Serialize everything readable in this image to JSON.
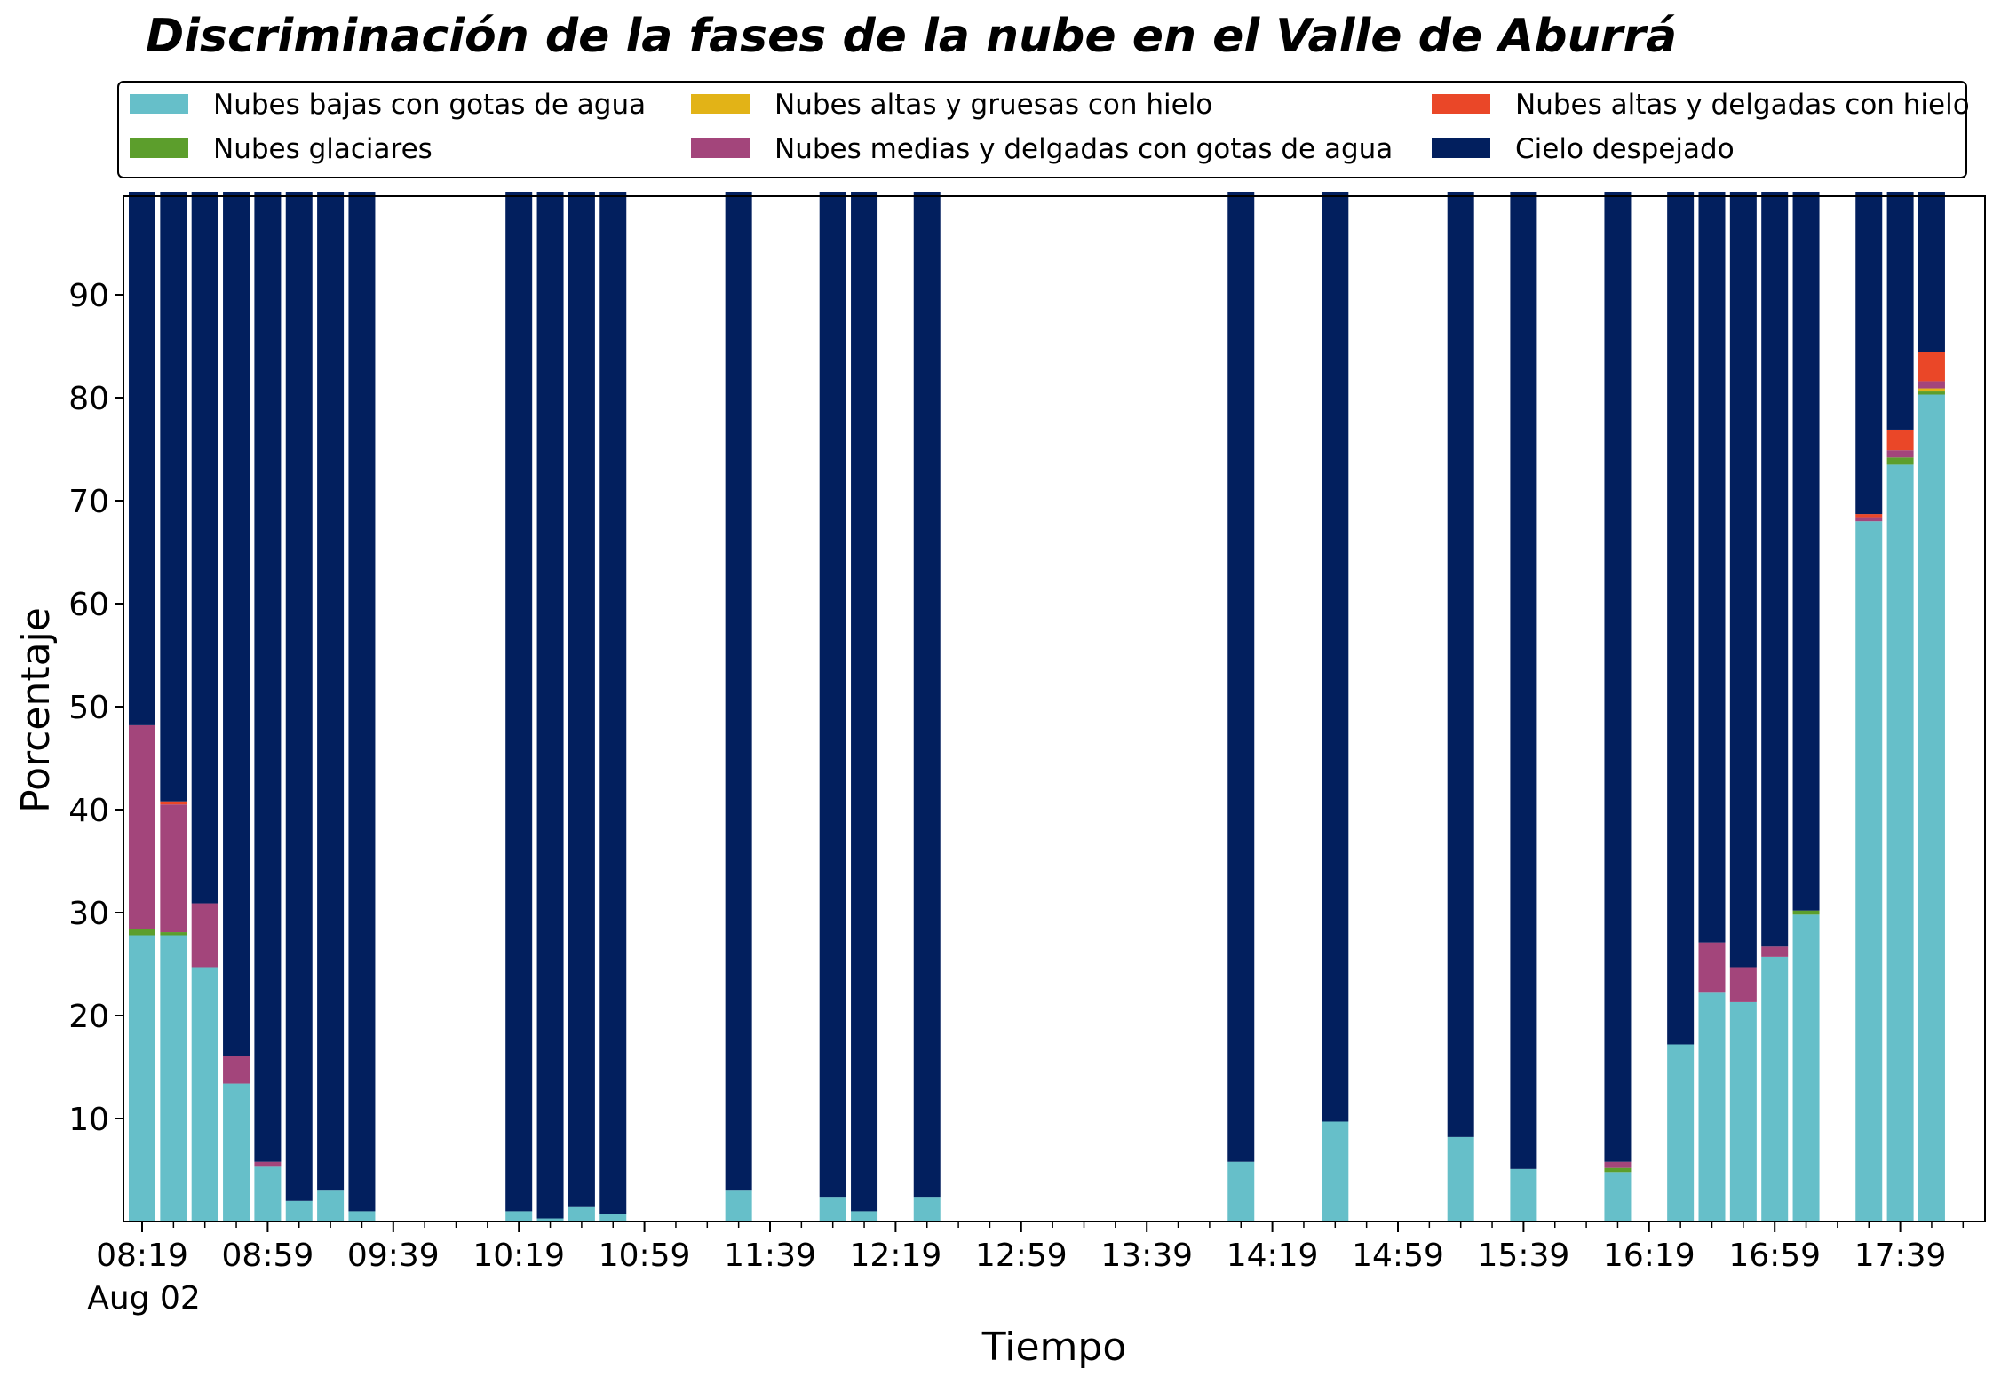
{
  "chart_data": {
    "type": "bar",
    "stacked": true,
    "title": "Discriminación de la fases de la nube en el Valle de Aburrá",
    "xlabel": "Tiempo",
    "ylabel": "Porcentaje",
    "ylim": [
      0,
      100
    ],
    "yticks": [
      10,
      20,
      30,
      40,
      50,
      60,
      70,
      80,
      90
    ],
    "xticks": [
      "08:19",
      "08:59",
      "09:39",
      "10:19",
      "10:59",
      "11:39",
      "12:19",
      "12:59",
      "13:39",
      "14:19",
      "14:59",
      "15:39",
      "16:19",
      "16:59",
      "17:39"
    ],
    "x_date_label": "Aug 02",
    "grid": false,
    "legend_position": "top",
    "slot_count": 59,
    "series": [
      {
        "name": "Nubes bajas con gotas de agua",
        "color": "#66bfc9"
      },
      {
        "name": "Nubes glaciares",
        "color": "#5c9e2c"
      },
      {
        "name": "Nubes altas y gruesas con hielo",
        "color": "#e2b317"
      },
      {
        "name": "Nubes medias y delgadas con gotas de agua",
        "color": "#a3457b"
      },
      {
        "name": "Nubes altas y delgadas con hielo",
        "color": "#ea4728"
      },
      {
        "name": "Cielo despejado",
        "color": "#021f5e"
      }
    ],
    "bars": [
      {
        "time": "08:19",
        "values": [
          27.8,
          0.6,
          0,
          19.8,
          0,
          51.8
        ]
      },
      {
        "time": "08:29",
        "values": [
          27.8,
          0.3,
          0,
          12.4,
          0.3,
          59.2
        ]
      },
      {
        "time": "08:39",
        "values": [
          24.7,
          0,
          0,
          6.2,
          0,
          69.1
        ]
      },
      {
        "time": "08:49",
        "values": [
          13.4,
          0,
          0,
          2.7,
          0,
          83.9
        ]
      },
      {
        "time": "08:59",
        "values": [
          5.4,
          0,
          0,
          0.4,
          0,
          94.2
        ]
      },
      {
        "time": "09:09",
        "values": [
          2.0,
          0,
          0,
          0,
          0,
          98.0
        ]
      },
      {
        "time": "09:19",
        "values": [
          3.0,
          0,
          0,
          0,
          0,
          97.0
        ]
      },
      {
        "time": "09:29",
        "values": [
          1.0,
          0,
          0,
          0,
          0,
          99.0
        ]
      },
      {
        "time": "10:19",
        "values": [
          1.0,
          0,
          0,
          0,
          0,
          99.0
        ]
      },
      {
        "time": "10:29",
        "values": [
          0.3,
          0,
          0,
          0,
          0,
          99.7
        ]
      },
      {
        "time": "10:39",
        "values": [
          1.4,
          0,
          0,
          0,
          0,
          98.6
        ]
      },
      {
        "time": "10:49",
        "values": [
          0.7,
          0,
          0,
          0,
          0,
          99.3
        ]
      },
      {
        "time": "11:29",
        "values": [
          3.0,
          0,
          0,
          0,
          0,
          97.0
        ]
      },
      {
        "time": "11:59",
        "values": [
          2.4,
          0,
          0,
          0,
          0,
          97.6
        ]
      },
      {
        "time": "12:09",
        "values": [
          1.0,
          0,
          0,
          0,
          0,
          99.0
        ]
      },
      {
        "time": "12:29",
        "values": [
          2.4,
          0,
          0,
          0,
          0,
          97.6
        ]
      },
      {
        "time": "14:09",
        "values": [
          5.8,
          0,
          0,
          0,
          0,
          94.2
        ]
      },
      {
        "time": "14:39",
        "values": [
          9.7,
          0,
          0,
          0,
          0,
          90.3
        ]
      },
      {
        "time": "15:19",
        "values": [
          8.2,
          0,
          0,
          0,
          0,
          91.8
        ]
      },
      {
        "time": "15:39",
        "values": [
          5.1,
          0,
          0,
          0,
          0,
          94.9
        ]
      },
      {
        "time": "16:09",
        "values": [
          4.8,
          0.4,
          0,
          0.6,
          0,
          94.2
        ]
      },
      {
        "time": "16:29",
        "values": [
          17.2,
          0,
          0,
          0,
          0,
          82.8
        ]
      },
      {
        "time": "16:39",
        "values": [
          22.3,
          0,
          0,
          4.8,
          0,
          72.9
        ]
      },
      {
        "time": "16:49",
        "values": [
          21.3,
          0,
          0,
          3.4,
          0,
          75.3
        ]
      },
      {
        "time": "16:59",
        "values": [
          25.7,
          0,
          0,
          1.0,
          0,
          73.3
        ]
      },
      {
        "time": "17:09",
        "values": [
          29.8,
          0.4,
          0,
          0,
          0,
          69.8
        ]
      },
      {
        "time": "17:29",
        "values": [
          68.0,
          0,
          0,
          0.4,
          0.3,
          31.3
        ]
      },
      {
        "time": "17:39",
        "values": [
          73.5,
          0.7,
          0,
          0.7,
          2.0,
          23.1
        ]
      },
      {
        "time": "17:49",
        "values": [
          80.3,
          0.3,
          0.3,
          0.7,
          2.8,
          15.6
        ]
      }
    ]
  }
}
